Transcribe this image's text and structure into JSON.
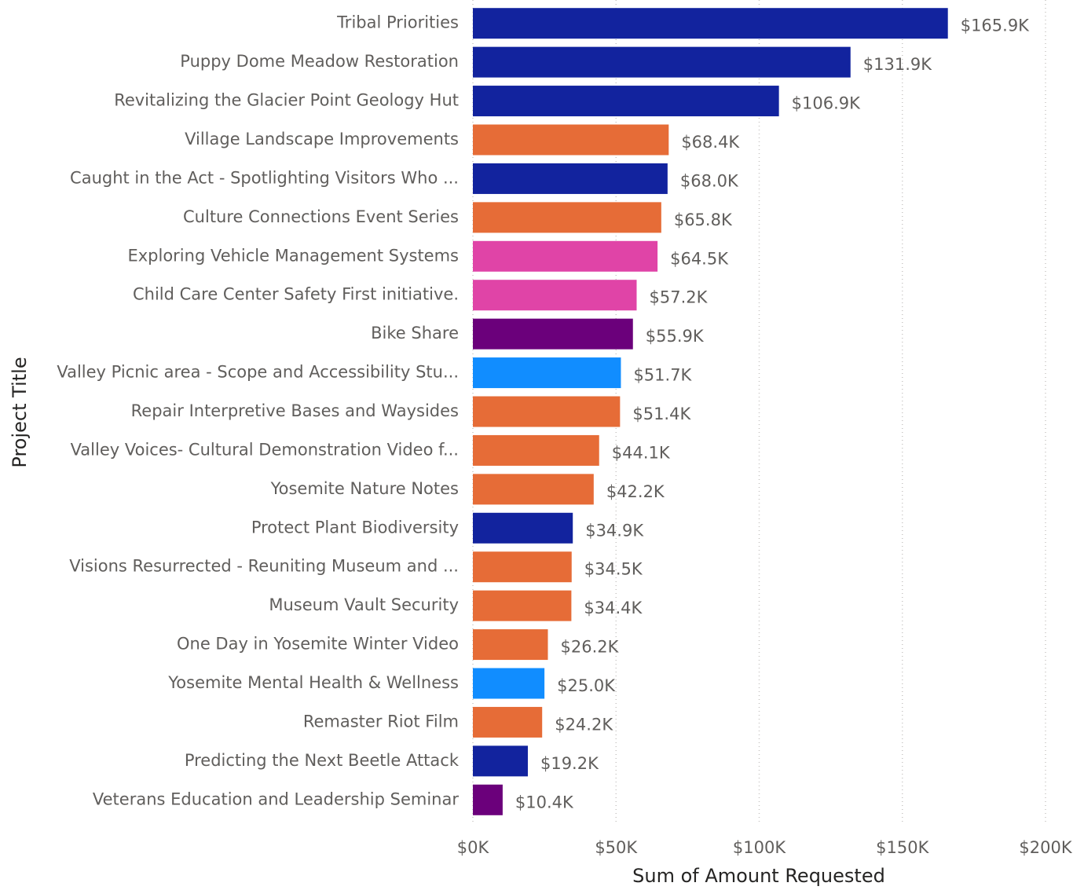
{
  "chart_data": {
    "type": "hbar",
    "x_label": "Sum of Amount Requested",
    "y_label": "Project Title",
    "categories": [
      "Tribal Priorities",
      "Puppy Dome Meadow Restoration",
      "Revitalizing the Glacier Point Geology Hut",
      "Village Landscape Improvements",
      "Caught in the Act - Spotlighting Visitors Who ...",
      "Culture Connections Event Series",
      "Exploring Vehicle Management Systems",
      "Child Care Center Safety First initiative.",
      "Bike Share",
      "Valley Picnic area - Scope and Accessibility Stu...",
      "Repair Interpretive Bases and Waysides",
      "Valley Voices- Cultural Demonstration Video f...",
      "Yosemite Nature Notes",
      "Protect Plant Biodiversity",
      "Visions Resurrected - Reuniting Museum and ...",
      "Museum Vault Security",
      "One Day in Yosemite Winter Video",
      "Yosemite Mental Health & Wellness",
      "Remaster Riot Film",
      "Predicting the Next Beetle Attack",
      "Veterans Education and Leadership Seminar"
    ],
    "values": [
      165900,
      131900,
      106900,
      68400,
      68000,
      65800,
      64500,
      57200,
      55900,
      51700,
      51400,
      44100,
      42200,
      34900,
      34500,
      34400,
      26200,
      25000,
      24200,
      19200,
      10400
    ],
    "value_labels": [
      "$165.9K",
      "$131.9K",
      "$106.9K",
      "$68.4K",
      "$68.0K",
      "$65.8K",
      "$64.5K",
      "$57.2K",
      "$55.9K",
      "$51.7K",
      "$51.4K",
      "$44.1K",
      "$42.2K",
      "$34.9K",
      "$34.5K",
      "$34.4K",
      "$26.2K",
      "$25.0K",
      "$24.2K",
      "$19.2K",
      "$10.4K"
    ],
    "colors": [
      "#12239E",
      "#12239E",
      "#12239E",
      "#E66C37",
      "#12239E",
      "#E66C37",
      "#E044A7",
      "#E044A7",
      "#6B007B",
      "#118DFF",
      "#E66C37",
      "#E66C37",
      "#E66C37",
      "#12239E",
      "#E66C37",
      "#E66C37",
      "#E66C37",
      "#118DFF",
      "#E66C37",
      "#12239E",
      "#6B007B"
    ],
    "xlim": [
      0,
      200000
    ],
    "xticks": [
      {
        "value": 0,
        "label": "$0K"
      },
      {
        "value": 50000,
        "label": "$50K"
      },
      {
        "value": 100000,
        "label": "$100K"
      },
      {
        "value": 150000,
        "label": "$150K"
      },
      {
        "value": 200000,
        "label": "$200K"
      }
    ],
    "grid": true
  }
}
